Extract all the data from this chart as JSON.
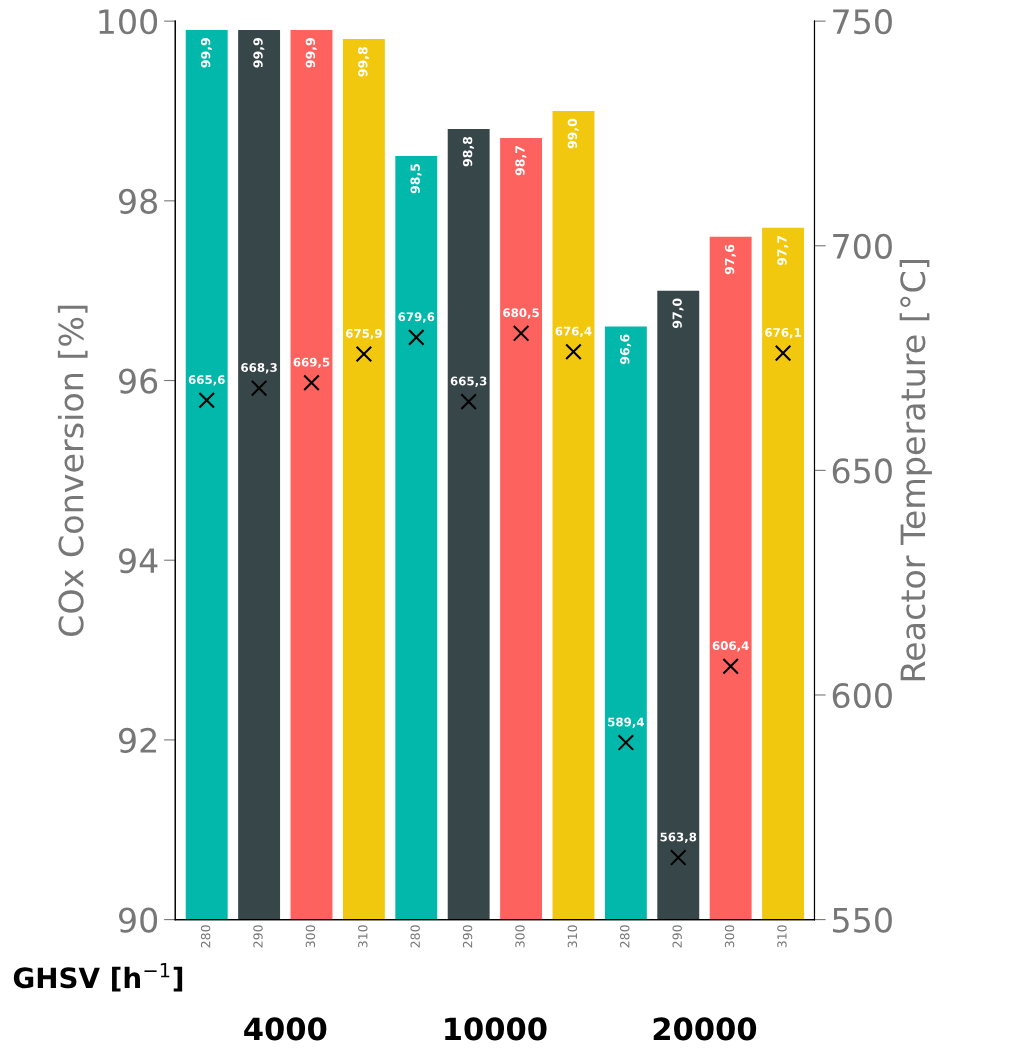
{
  "chart_data": {
    "type": "bar",
    "categories": [
      "280",
      "290",
      "300",
      "310",
      "280",
      "290",
      "300",
      "310",
      "280",
      "290",
      "300",
      "310"
    ],
    "ylabel": "COx Conversion [%]",
    "y2label": "Reactor Temperature [°C]",
    "xlabel": "GHSV [h$^{−1}$]",
    "ylim": [
      90,
      100
    ],
    "yticks": [
      90,
      92,
      94,
      96,
      98,
      100
    ],
    "y2lim": [
      550,
      750
    ],
    "y2ticks": [
      550,
      600,
      650,
      700,
      750
    ],
    "annotations": [
      "4000",
      "10000",
      "20000"
    ],
    "grid": false,
    "series": [
      {
        "type": "bar",
        "colors": [
          "#01b8aa",
          "#374649",
          "#fd625e",
          "#f2c80f",
          "#01b8aa",
          "#374649",
          "#fd625e",
          "#f2c80f",
          "#01b8aa",
          "#374649",
          "#fd625e",
          "#f2c80f"
        ],
        "values": [
          99.9,
          99.9,
          99.9,
          99.8,
          98.5,
          98.8,
          98.7,
          99.0,
          96.6,
          97.0,
          97.6,
          97.7
        ],
        "value_labels": [
          "99,9",
          "99,9",
          "99,9",
          "99,8",
          "98,5",
          "98,8",
          "98,7",
          "99,0",
          "96,6",
          "97,0",
          "97,6",
          "97,7"
        ]
      },
      {
        "type": "scatter",
        "axis": "y2",
        "color": "#000000",
        "marker": "cross",
        "values": [
          665.6,
          668.3,
          669.5,
          675.9,
          679.6,
          665.3,
          680.5,
          676.4,
          589.4,
          563.8,
          606.4,
          676.1
        ],
        "value_labels": [
          "665,6",
          "668,3",
          "669,5",
          "675,9",
          "679,6",
          "665,3",
          "680,5",
          "676,4",
          "589,4",
          "563,8",
          "606,4",
          "676,1"
        ]
      }
    ]
  }
}
